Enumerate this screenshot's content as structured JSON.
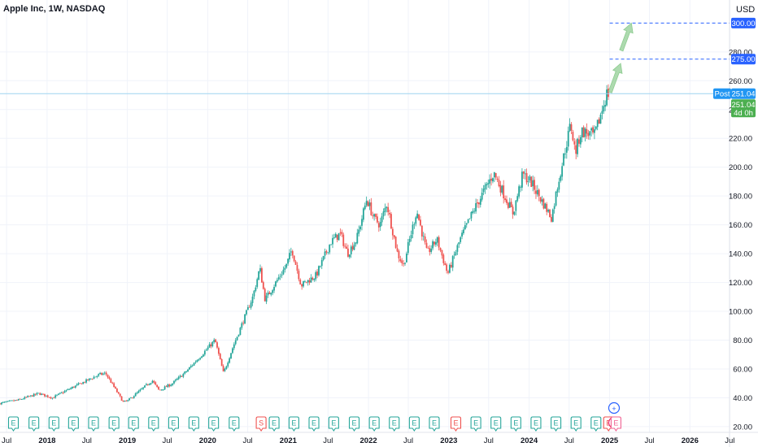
{
  "header": {
    "symbol_title": "Apple Inc, 1W, NASDAQ",
    "currency": "USD"
  },
  "colors": {
    "up": "#26a69a",
    "down": "#ef5350",
    "price_line": "#9ed3f0",
    "target": "#2962ff",
    "tag_blue": "#2962ff",
    "tag_green": "#4caf50",
    "post_blue": "#2196f3"
  },
  "chart_data": {
    "type": "candlestick",
    "title": "Apple Inc, 1W, NASDAQ",
    "ylim": [
      16,
      316
    ],
    "y_ticks": [
      20,
      40,
      60,
      80,
      100,
      120,
      140,
      160,
      180,
      200,
      220,
      240,
      260,
      280
    ],
    "x_range": [
      "2017-06-01",
      "2026-06-30"
    ],
    "x_ticks": [
      {
        "label": "Jul",
        "date": "2017-07-01",
        "bold": false
      },
      {
        "label": "2018",
        "date": "2018-01-01",
        "bold": true
      },
      {
        "label": "Jul",
        "date": "2018-07-01",
        "bold": false
      },
      {
        "label": "2019",
        "date": "2019-01-01",
        "bold": true
      },
      {
        "label": "Jul",
        "date": "2019-07-01",
        "bold": false
      },
      {
        "label": "2020",
        "date": "2020-01-01",
        "bold": true
      },
      {
        "label": "Jul",
        "date": "2020-07-01",
        "bold": false
      },
      {
        "label": "2021",
        "date": "2021-01-01",
        "bold": true
      },
      {
        "label": "Jul",
        "date": "2021-07-01",
        "bold": false
      },
      {
        "label": "2022",
        "date": "2022-01-01",
        "bold": true
      },
      {
        "label": "Jul",
        "date": "2022-07-01",
        "bold": false
      },
      {
        "label": "2023",
        "date": "2023-01-01",
        "bold": true
      },
      {
        "label": "Jul",
        "date": "2023-07-01",
        "bold": false
      },
      {
        "label": "2024",
        "date": "2024-01-01",
        "bold": true
      },
      {
        "label": "Jul",
        "date": "2024-07-01",
        "bold": false
      },
      {
        "label": "2025",
        "date": "2025-01-01",
        "bold": true
      },
      {
        "label": "Jul",
        "date": "2025-07-01",
        "bold": false
      },
      {
        "label": "2026",
        "date": "2026-01-01",
        "bold": true
      },
      {
        "label": "Jul",
        "date": "2026-07-01",
        "bold": false
      }
    ],
    "price_path": [
      [
        "2017-06-01",
        36
      ],
      [
        "2017-09-01",
        38.5
      ],
      [
        "2017-12-01",
        43
      ],
      [
        "2018-02-01",
        40
      ],
      [
        "2018-05-01",
        47
      ],
      [
        "2018-09-01",
        56
      ],
      [
        "2018-10-01",
        57
      ],
      [
        "2018-12-20",
        37
      ],
      [
        "2019-01-10",
        38
      ],
      [
        "2019-05-01",
        52
      ],
      [
        "2019-06-01",
        45
      ],
      [
        "2019-08-01",
        50
      ],
      [
        "2019-10-01",
        58
      ],
      [
        "2019-12-31",
        73
      ],
      [
        "2020-02-10",
        80
      ],
      [
        "2020-03-20",
        57
      ],
      [
        "2020-05-01",
        75
      ],
      [
        "2020-07-31",
        110
      ],
      [
        "2020-09-01",
        130
      ],
      [
        "2020-09-25",
        108
      ],
      [
        "2020-12-31",
        132
      ],
      [
        "2021-01-25",
        143
      ],
      [
        "2021-03-08",
        118
      ],
      [
        "2021-05-15",
        125
      ],
      [
        "2021-07-20",
        148
      ],
      [
        "2021-09-01",
        154
      ],
      [
        "2021-10-05",
        140
      ],
      [
        "2021-11-15",
        150
      ],
      [
        "2021-12-31",
        178
      ],
      [
        "2022-01-31",
        165
      ],
      [
        "2022-03-01",
        160
      ],
      [
        "2022-04-01",
        175
      ],
      [
        "2022-05-20",
        140
      ],
      [
        "2022-06-16",
        132
      ],
      [
        "2022-08-15",
        170
      ],
      [
        "2022-10-01",
        140
      ],
      [
        "2022-11-15",
        150
      ],
      [
        "2023-01-03",
        126
      ],
      [
        "2023-03-01",
        150
      ],
      [
        "2023-05-01",
        170
      ],
      [
        "2023-07-31",
        196
      ],
      [
        "2023-10-27",
        168
      ],
      [
        "2023-12-10",
        195
      ],
      [
        "2024-01-15",
        190
      ],
      [
        "2024-04-19",
        165
      ],
      [
        "2024-05-20",
        190
      ],
      [
        "2024-07-15",
        230
      ],
      [
        "2024-08-05",
        210
      ],
      [
        "2024-09-01",
        225
      ],
      [
        "2024-11-01",
        222
      ],
      [
        "2024-12-26",
        251
      ]
    ],
    "last_price": 251.04,
    "countdown": "4d 0h",
    "post_label": "Post",
    "targets": [
      {
        "price": 275,
        "label": "275.00"
      },
      {
        "price": 300,
        "label": "300.00"
      }
    ],
    "current_price_label": "251.04",
    "post_price_label": "251.04",
    "projection_arrows": [
      {
        "from": [
          "2025-01-03",
          252
        ],
        "to": [
          "2025-02-20",
          272
        ]
      },
      {
        "from": [
          "2025-02-23",
          281
        ],
        "to": [
          "2025-04-10",
          300
        ]
      }
    ],
    "events": [
      {
        "kind": "E",
        "date": "2017-08-01"
      },
      {
        "kind": "E",
        "date": "2017-11-02"
      },
      {
        "kind": "E",
        "date": "2018-02-01"
      },
      {
        "kind": "E",
        "date": "2018-05-01"
      },
      {
        "kind": "E",
        "date": "2018-07-31"
      },
      {
        "kind": "E",
        "date": "2018-11-01"
      },
      {
        "kind": "E",
        "date": "2019-01-29"
      },
      {
        "kind": "E",
        "date": "2019-04-30"
      },
      {
        "kind": "E",
        "date": "2019-07-30"
      },
      {
        "kind": "E",
        "date": "2019-10-30"
      },
      {
        "kind": "E",
        "date": "2020-01-28"
      },
      {
        "kind": "E",
        "date": "2020-04-30"
      },
      {
        "kind": "S",
        "date": "2020-08-31"
      },
      {
        "kind": "E",
        "date": "2020-10-29"
      },
      {
        "kind": "E",
        "date": "2021-01-27"
      },
      {
        "kind": "E",
        "date": "2021-04-28"
      },
      {
        "kind": "E",
        "date": "2021-07-27"
      },
      {
        "kind": "E",
        "date": "2021-10-28"
      },
      {
        "kind": "E",
        "date": "2022-01-27"
      },
      {
        "kind": "E",
        "date": "2022-04-28"
      },
      {
        "kind": "E",
        "date": "2022-07-28"
      },
      {
        "kind": "E",
        "date": "2022-10-27"
      },
      {
        "kind": "E",
        "date": "2023-02-02",
        "red": true
      },
      {
        "kind": "E",
        "date": "2023-05-04"
      },
      {
        "kind": "E",
        "date": "2023-08-03"
      },
      {
        "kind": "E",
        "date": "2023-11-02"
      },
      {
        "kind": "E",
        "date": "2024-02-01"
      },
      {
        "kind": "E",
        "date": "2024-05-02"
      },
      {
        "kind": "E",
        "date": "2024-08-01"
      },
      {
        "kind": "E",
        "date": "2024-10-31"
      },
      {
        "kind": "E",
        "date": "2024-12-27",
        "red": true
      },
      {
        "kind": "flash",
        "date": "2025-01-21"
      },
      {
        "kind": "E",
        "date": "2025-01-30",
        "pink": true
      }
    ],
    "plus_event_date": "2025-01-21"
  }
}
